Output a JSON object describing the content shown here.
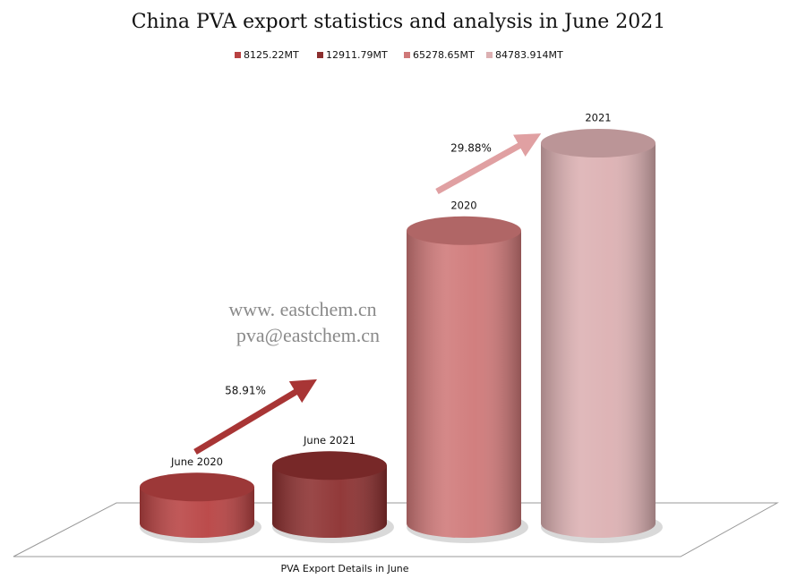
{
  "chart_data": {
    "type": "cylinder",
    "title": "China PVA export statistics and analysis in June 2021",
    "x_label": "PVA Export Details in June",
    "categories": [
      "June 2020",
      "June 2021",
      "2020",
      "2021"
    ],
    "series": [
      {
        "name": "8125.22MT",
        "color": "#b84242",
        "values": [
          8125.22,
          null,
          null,
          null
        ]
      },
      {
        "name": "12911.79MT",
        "color": "#8c2f2f",
        "values": [
          null,
          12911.79,
          null,
          null
        ]
      },
      {
        "name": "65278.65MT",
        "color": "#cf7878",
        "values": [
          null,
          null,
          65278.65,
          null
        ]
      },
      {
        "name": "84783.914MT",
        "color": "#dcb0b2",
        "values": [
          null,
          null,
          null,
          84783.914
        ]
      }
    ],
    "annotations": [
      "58.91%",
      "29.88%"
    ],
    "watermark": [
      "www. eastchem.cn",
      "pva@eastchem.cn"
    ]
  }
}
